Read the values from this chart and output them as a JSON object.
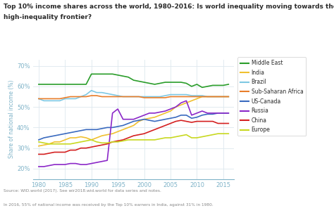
{
  "title_line1": "Top 10% income shares across the world, 1980–2016: Is world inequality moving towards the",
  "title_line2": "high-inequality frontier?",
  "ylabel": "Share of national income (%)",
  "source_line1": "Source: WID.world (2017). See wir2018.wid.world for data series and notes.",
  "source_line2": "In 2016, 55% of national income was received by the Top 10% earners in India, against 31% in 1980.",
  "ylim": [
    15,
    73
  ],
  "xlim": [
    1979,
    2017
  ],
  "yticks": [
    20,
    30,
    40,
    50,
    60,
    70
  ],
  "xticks": [
    1980,
    1985,
    1990,
    1995,
    2000,
    2005,
    2010,
    2015
  ],
  "series": {
    "Middle East": {
      "color": "#2a9d2a",
      "years": [
        1980,
        1981,
        1982,
        1983,
        1984,
        1985,
        1986,
        1987,
        1988,
        1989,
        1990,
        1991,
        1992,
        1993,
        1994,
        1995,
        1996,
        1997,
        1998,
        1999,
        2000,
        2001,
        2002,
        2003,
        2004,
        2005,
        2006,
        2007,
        2008,
        2009,
        2010,
        2011,
        2012,
        2013,
        2014,
        2015,
        2016
      ],
      "values": [
        61,
        61,
        61,
        61,
        61,
        61,
        61,
        61,
        61,
        61,
        66,
        66,
        66,
        66,
        66,
        65.5,
        65,
        64.5,
        63,
        62.5,
        62,
        61.5,
        61,
        61.5,
        62,
        62,
        62,
        62,
        61.5,
        60,
        61,
        59.5,
        60,
        60.5,
        60.5,
        60.5,
        61
      ]
    },
    "India": {
      "color": "#f0c030",
      "years": [
        1980,
        1981,
        1982,
        1983,
        1984,
        1985,
        1986,
        1987,
        1988,
        1989,
        1990,
        1991,
        1992,
        1993,
        1994,
        1995,
        1996,
        1997,
        1998,
        1999,
        2000,
        2001,
        2002,
        2003,
        2004,
        2005,
        2006,
        2007,
        2008,
        2009,
        2010,
        2011,
        2012,
        2013,
        2014,
        2015,
        2016
      ],
      "values": [
        31,
        31.5,
        32,
        33,
        33,
        34,
        35,
        35,
        35.5,
        35,
        34,
        35,
        36,
        36.5,
        37,
        38,
        39,
        40,
        41,
        43,
        44,
        44.5,
        45,
        46,
        47,
        48,
        50,
        51,
        52,
        53,
        54,
        55,
        55,
        55,
        55,
        55,
        55
      ]
    },
    "Brazil": {
      "color": "#7ec8e3",
      "years": [
        1980,
        1981,
        1982,
        1983,
        1984,
        1985,
        1986,
        1987,
        1988,
        1989,
        1990,
        1991,
        1992,
        1993,
        1994,
        1995,
        1996,
        1997,
        1998,
        1999,
        2000,
        2001,
        2002,
        2003,
        2004,
        2005,
        2006,
        2007,
        2008,
        2009,
        2010,
        2011,
        2012,
        2013,
        2014,
        2015,
        2016
      ],
      "values": [
        54,
        53,
        53,
        53,
        53,
        54,
        54,
        54,
        55,
        56,
        58,
        57,
        57,
        56.5,
        56,
        55.5,
        55,
        55,
        55,
        55,
        55,
        55,
        55,
        55,
        55.5,
        56,
        56,
        56,
        56,
        55.5,
        55.5,
        55.5,
        55,
        55,
        55,
        55,
        55
      ]
    },
    "Sub-Saharan Africa": {
      "color": "#e87d2a",
      "years": [
        1980,
        1981,
        1982,
        1983,
        1984,
        1985,
        1986,
        1987,
        1988,
        1989,
        1990,
        1991,
        1992,
        1993,
        1994,
        1995,
        1996,
        1997,
        1998,
        1999,
        2000,
        2001,
        2002,
        2003,
        2004,
        2005,
        2006,
        2007,
        2008,
        2009,
        2010,
        2011,
        2012,
        2013,
        2014,
        2015,
        2016
      ],
      "values": [
        54,
        54,
        54,
        54,
        54,
        54.5,
        55,
        55,
        55,
        55,
        55.5,
        55.5,
        55,
        55,
        55,
        55,
        55,
        55,
        55,
        55,
        54.5,
        54.5,
        54.5,
        54.5,
        54.5,
        55,
        55,
        55,
        55,
        55,
        55,
        55,
        55,
        55,
        55,
        55,
        55
      ]
    },
    "US-Canada": {
      "color": "#3a6abf",
      "years": [
        1980,
        1981,
        1982,
        1983,
        1984,
        1985,
        1986,
        1987,
        1988,
        1989,
        1990,
        1991,
        1992,
        1993,
        1994,
        1995,
        1996,
        1997,
        1998,
        1999,
        2000,
        2001,
        2002,
        2003,
        2004,
        2005,
        2006,
        2007,
        2008,
        2009,
        2010,
        2011,
        2012,
        2013,
        2014,
        2015,
        2016
      ],
      "values": [
        34,
        35,
        35.5,
        36,
        36.5,
        37,
        37.5,
        38,
        38.5,
        39,
        39,
        39,
        39.5,
        40,
        40,
        40.5,
        41,
        42,
        43,
        43.5,
        44,
        43.5,
        43,
        43.5,
        44,
        44.5,
        45,
        46,
        46,
        44.5,
        45,
        46,
        46.5,
        46.5,
        47,
        47,
        47
      ]
    },
    "Russia": {
      "color": "#8b28c8",
      "years": [
        1980,
        1981,
        1982,
        1983,
        1984,
        1985,
        1986,
        1987,
        1988,
        1989,
        1990,
        1991,
        1992,
        1993,
        1994,
        1995,
        1996,
        1997,
        1998,
        1999,
        2000,
        2001,
        2002,
        2003,
        2004,
        2005,
        2006,
        2007,
        2008,
        2009,
        2010,
        2011,
        2012,
        2013,
        2014,
        2015,
        2016
      ],
      "values": [
        21,
        21,
        21.5,
        22,
        22,
        22,
        22.5,
        22.5,
        22,
        22,
        22.5,
        23,
        23.5,
        24,
        47,
        49,
        44,
        44,
        44,
        45,
        46,
        47,
        47,
        47.5,
        48,
        49,
        50,
        52,
        53,
        46,
        47,
        48,
        47,
        47,
        47,
        47,
        47
      ]
    },
    "China": {
      "color": "#d42020",
      "years": [
        1980,
        1981,
        1982,
        1983,
        1984,
        1985,
        1986,
        1987,
        1988,
        1989,
        1990,
        1991,
        1992,
        1993,
        1994,
        1995,
        1996,
        1997,
        1998,
        1999,
        2000,
        2001,
        2002,
        2003,
        2004,
        2005,
        2006,
        2007,
        2008,
        2009,
        2010,
        2011,
        2012,
        2013,
        2014,
        2015,
        2016
      ],
      "values": [
        27,
        27,
        27.5,
        28,
        28,
        28,
        29,
        29,
        30,
        30,
        30.5,
        31,
        31.5,
        32,
        33,
        33.5,
        34,
        35,
        36,
        36.5,
        37,
        38,
        39,
        40,
        41,
        42,
        43,
        43.5,
        43,
        42.5,
        43,
        43,
        43,
        43,
        42,
        42,
        42
      ]
    },
    "Europe": {
      "color": "#c8d820",
      "years": [
        1980,
        1981,
        1982,
        1983,
        1984,
        1985,
        1986,
        1987,
        1988,
        1989,
        1990,
        1991,
        1992,
        1993,
        1994,
        1995,
        1996,
        1997,
        1998,
        1999,
        2000,
        2001,
        2002,
        2003,
        2004,
        2005,
        2006,
        2007,
        2008,
        2009,
        2010,
        2011,
        2012,
        2013,
        2014,
        2015,
        2016
      ],
      "values": [
        33,
        32.5,
        32,
        32,
        32,
        32,
        32,
        32.5,
        33,
        33.5,
        34,
        33,
        32.5,
        32.5,
        33,
        33,
        33.5,
        34,
        34,
        34,
        34,
        34,
        34,
        34.5,
        35,
        35,
        35.5,
        36,
        36.5,
        35,
        35,
        35.5,
        36,
        36.5,
        37,
        37,
        37
      ]
    }
  },
  "background_color": "#ffffff",
  "grid_color": "#dde8ee",
  "title_color": "#2a2a2a",
  "axis_color": "#7fb3c8",
  "tick_color": "#7fb3c8",
  "source_color": "#888888",
  "legend_box_color": "#f0f0f0",
  "legend_border_color": "#cccccc"
}
